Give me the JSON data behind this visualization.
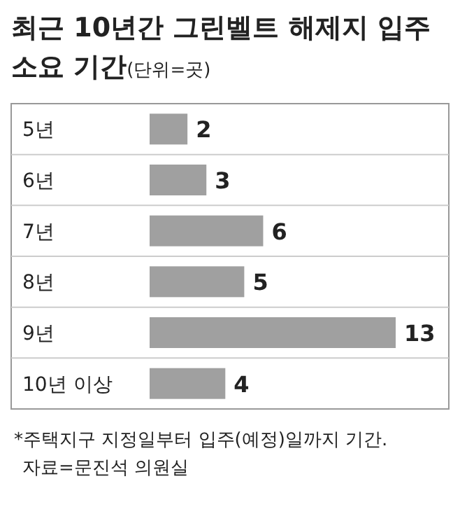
{
  "chart_data": {
    "type": "bar",
    "orientation": "horizontal",
    "title": "최근 10년간 그린벨트 해제지 입주 소요 기간",
    "subtitle": "(단위=곳)",
    "categories": [
      "5년",
      "6년",
      "7년",
      "8년",
      "9년",
      "10년 이상"
    ],
    "values": [
      2,
      3,
      6,
      5,
      13,
      4
    ],
    "color": "#a0a0a0",
    "data_labels": true,
    "annotations": [
      "*주택지구 지정일부터 입주(예정)일까지 기간.",
      "자료=문진석 의원실"
    ]
  }
}
